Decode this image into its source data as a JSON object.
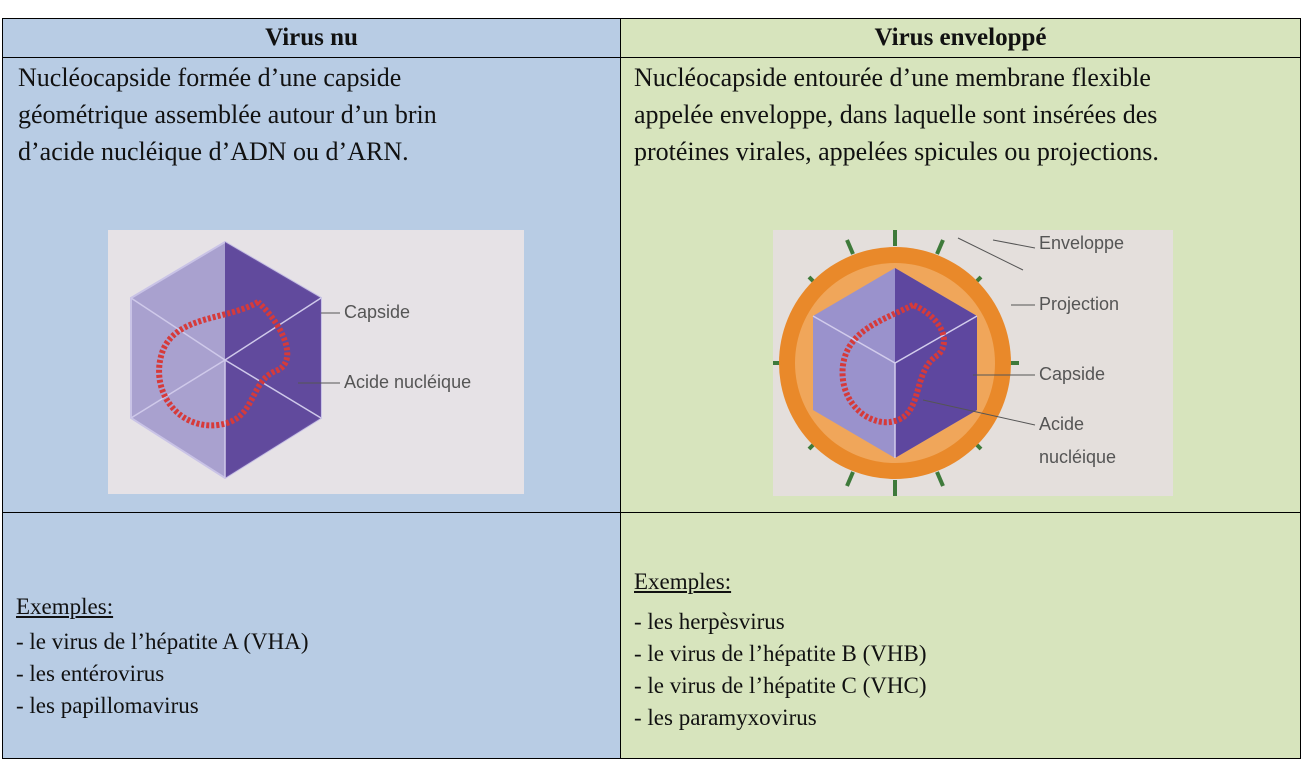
{
  "table": {
    "headers": [
      "Virus nu",
      "Virus enveloppé"
    ],
    "descriptions": [
      [
        "Nucléocapside formée d’une capside",
        "géométrique assemblée autour d’un brin",
        "d’acide nucléique d’ADN ou d’ARN."
      ],
      [
        "Nucléocapside entourée d’une membrane flexible",
        "appelée enveloppe, dans laquelle sont insérées des",
        "protéines virales, appelées spicules ou projections."
      ]
    ],
    "figures": [
      {
        "labels": [
          "Capside",
          "Acide nucléique"
        ]
      },
      {
        "labels": [
          "Enveloppe",
          "Projection",
          "Capside",
          "Acide",
          "nucléique"
        ]
      }
    ],
    "examples": [
      {
        "title": "Exemples:",
        "items": [
          "- le virus de l’hépatite A (VHA)",
          "- les entérovirus",
          "- les papillomavirus"
        ]
      },
      {
        "title": "Exemples:",
        "items": [
          "- les herpèsvirus",
          "- le virus de l’hépatite B (VHB)",
          "- le virus de l’hépatite C (VHC)",
          "- les paramyxovirus"
        ]
      }
    ]
  }
}
